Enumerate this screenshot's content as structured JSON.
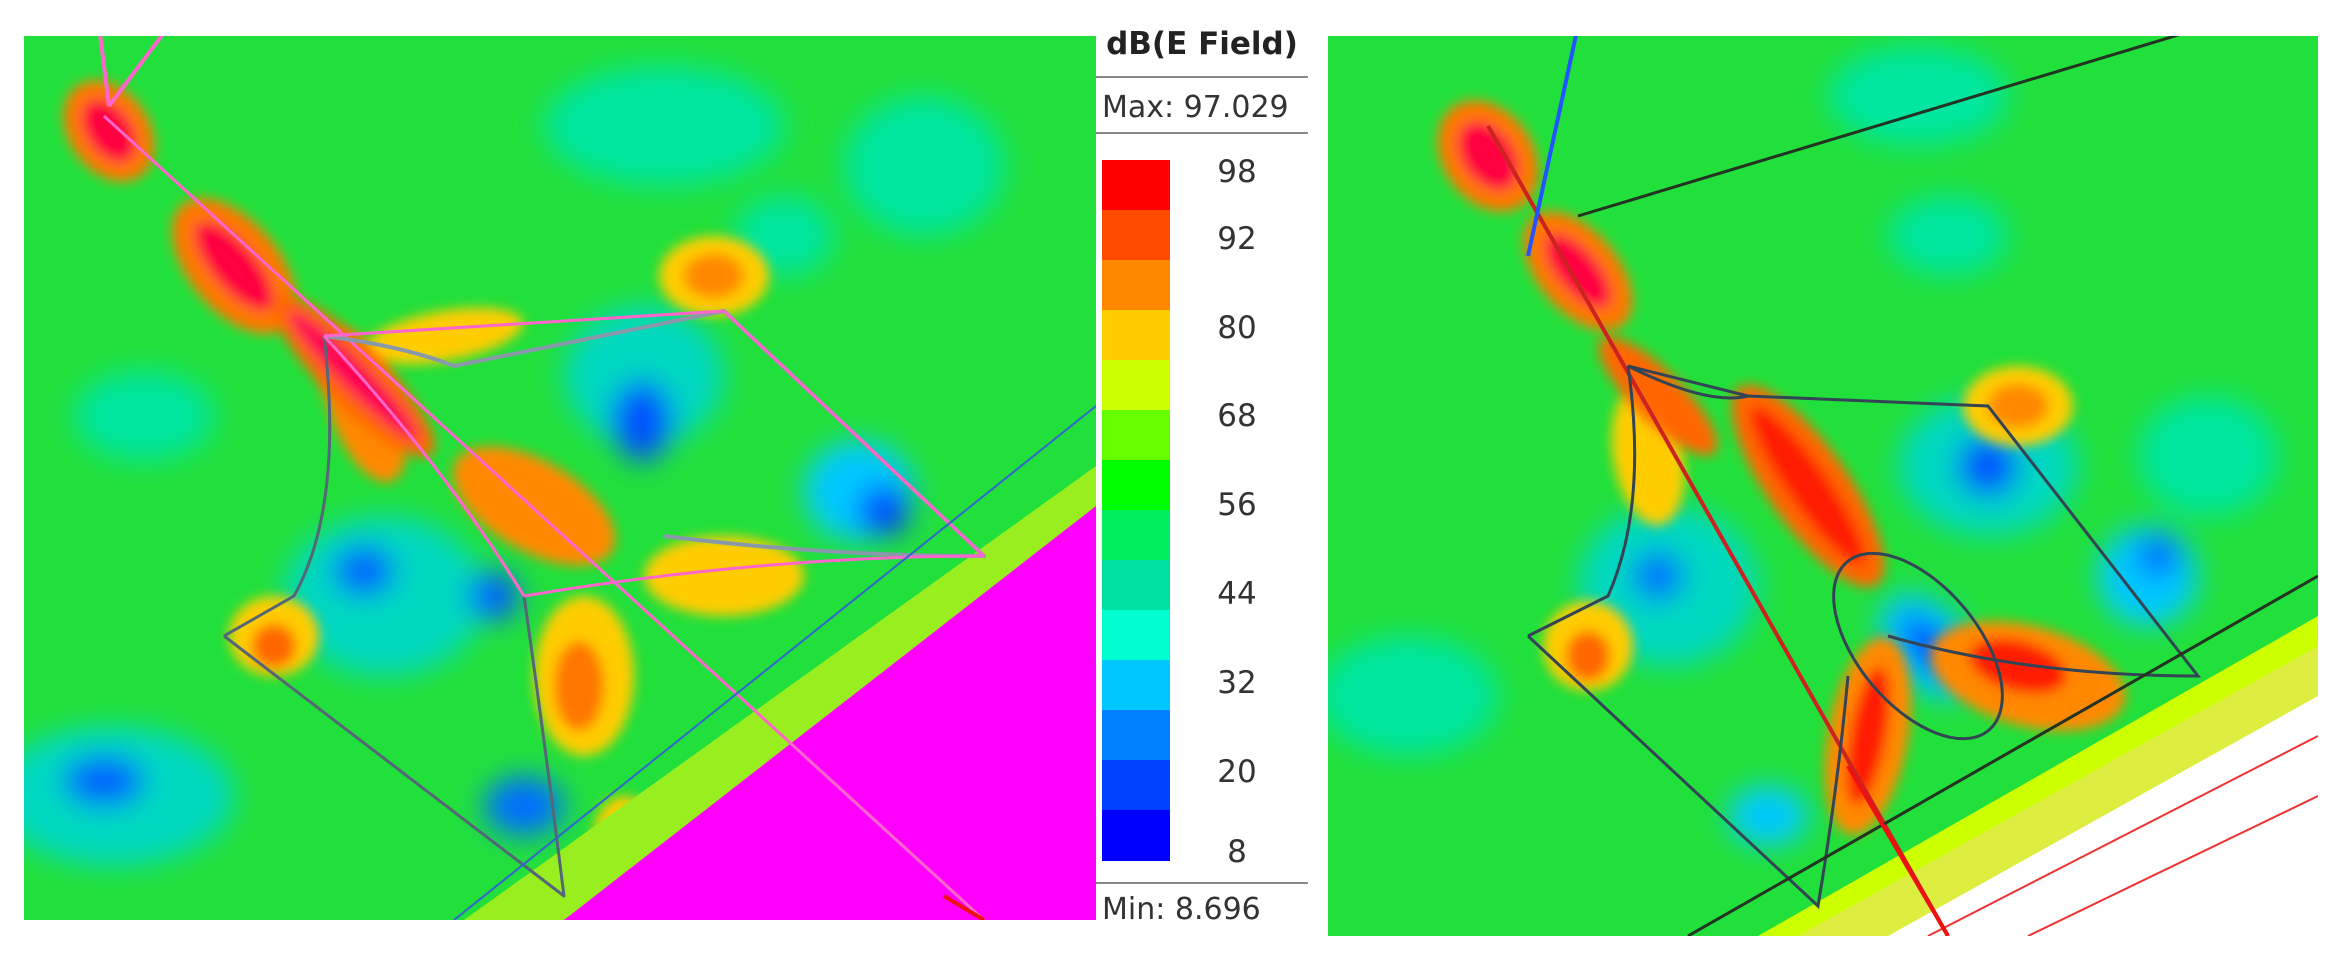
{
  "legend": {
    "title": "dB(E Field)",
    "max_label": "Max: 97.029",
    "min_label": "Min:  8.696",
    "ticks": [
      "98",
      "92",
      "80",
      "68",
      "56",
      "44",
      "32",
      "20",
      "8"
    ],
    "colors": [
      "#ff0000",
      "#ff4a00",
      "#ff8800",
      "#ffcc00",
      "#ccff00",
      "#66ff00",
      "#00ff00",
      "#00f060",
      "#00e0a0",
      "#00ffd0",
      "#00c8ff",
      "#0080ff",
      "#0040ff",
      "#0000ff"
    ]
  },
  "palette": {
    "field_background": "#22e03c",
    "magenta_region": "#ff00ff",
    "outline_pink": "#ff66cc",
    "outline_dark": "#334455",
    "feed_blue": "#2255ff",
    "feed_red": "#ee1111"
  }
}
